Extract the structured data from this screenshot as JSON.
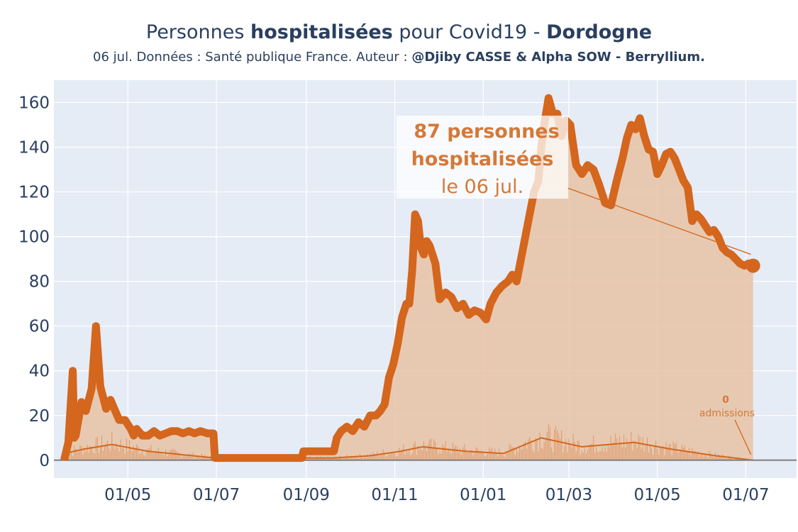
{
  "header": {
    "title_pre": "Personnes ",
    "title_bold1": "hospitalisées",
    "title_mid": " pour Covid19 - ",
    "title_bold2": "Dordogne",
    "subtitle_pre": "06 jul. Données : Santé publique France. Auteur : ",
    "subtitle_bold": "@Djiby CASSE & Alpha SOW - Berryllium."
  },
  "annotation": {
    "line1": "87 personnes",
    "line2": "hospitalisées",
    "line3": "le 06 jul."
  },
  "admissions_annotation": {
    "value": "0",
    "label": "admissions"
  },
  "colors": {
    "line": "#d4661d",
    "fill": "#e8c3a4",
    "plot_bg": "#e5ecf6",
    "grid": "#ffffff",
    "text": "#2a3f5f",
    "annotation": "#d4793a"
  },
  "chart_data": {
    "type": "area",
    "title": "Personnes hospitalisées pour Covid19 - Dordogne",
    "xlabel": "",
    "ylabel": "",
    "ylim": [
      -8,
      170
    ],
    "xlim": [
      "2020-03-11",
      "2021-08-05"
    ],
    "x_tick_labels": [
      "01/05",
      "01/07",
      "01/09",
      "01/11",
      "01/01",
      "01/03",
      "01/05",
      "01/07"
    ],
    "x_tick_dates": [
      "2020-05-01",
      "2020-07-01",
      "2020-09-01",
      "2020-11-01",
      "2021-01-01",
      "2021-03-01",
      "2021-05-01",
      "2021-07-01"
    ],
    "y_ticks": [
      0,
      20,
      40,
      60,
      80,
      100,
      120,
      140,
      160
    ],
    "series": [
      {
        "x": [
          "2020-03-18",
          "2020-03-21",
          "2020-03-24",
          "2020-03-25",
          "2020-03-26",
          "2020-03-30",
          "2020-04-02",
          "2020-04-06",
          "2020-04-09",
          "2020-04-12",
          "2020-04-14",
          "2020-04-16",
          "2020-04-17",
          "2020-04-19",
          "2020-04-21",
          "2020-04-25",
          "2020-04-29",
          "2020-05-03",
          "2020-05-05",
          "2020-05-07",
          "2020-05-11",
          "2020-05-15",
          "2020-05-19",
          "2020-05-23",
          "2020-05-27",
          "2020-05-31",
          "2020-06-04",
          "2020-06-08",
          "2020-06-12",
          "2020-06-16",
          "2020-06-20",
          "2020-06-25",
          "2020-06-29",
          "2020-06-30",
          "2020-07-05",
          "2020-07-20",
          "2020-08-10",
          "2020-08-25",
          "2020-08-29",
          "2020-08-30",
          "2020-09-05",
          "2020-09-15",
          "2020-09-20",
          "2020-09-22",
          "2020-09-25",
          "2020-09-29",
          "2020-10-03",
          "2020-10-07",
          "2020-10-11",
          "2020-10-15",
          "2020-10-19",
          "2020-10-22",
          "2020-10-25",
          "2020-10-28",
          "2020-10-31",
          "2020-11-03",
          "2020-11-06",
          "2020-11-09",
          "2020-11-11",
          "2020-11-13",
          "2020-11-15",
          "2020-11-17",
          "2020-11-19",
          "2020-11-21",
          "2020-11-23",
          "2020-11-25",
          "2020-11-29",
          "2020-12-02",
          "2020-12-06",
          "2020-12-10",
          "2020-12-14",
          "2020-12-18",
          "2020-12-22",
          "2020-12-26",
          "2020-12-30",
          "2021-01-03",
          "2021-01-06",
          "2021-01-10",
          "2021-01-14",
          "2021-01-18",
          "2021-01-21",
          "2021-01-24",
          "2021-01-27",
          "2021-01-30",
          "2021-02-02",
          "2021-02-05",
          "2021-02-08",
          "2021-02-10",
          "2021-02-12",
          "2021-02-15",
          "2021-02-18",
          "2021-02-21",
          "2021-02-24",
          "2021-02-27",
          "2021-03-02",
          "2021-03-06",
          "2021-03-10",
          "2021-03-14",
          "2021-03-18",
          "2021-03-22",
          "2021-03-26",
          "2021-03-30",
          "2021-04-03",
          "2021-04-07",
          "2021-04-10",
          "2021-04-13",
          "2021-04-16",
          "2021-04-19",
          "2021-04-22",
          "2021-04-25",
          "2021-04-28",
          "2021-05-01",
          "2021-05-04",
          "2021-05-07",
          "2021-05-10",
          "2021-05-13",
          "2021-05-16",
          "2021-05-19",
          "2021-05-22",
          "2021-05-25",
          "2021-05-28",
          "2021-05-31",
          "2021-06-03",
          "2021-06-06",
          "2021-06-09",
          "2021-06-12",
          "2021-06-15",
          "2021-06-18",
          "2021-06-21",
          "2021-06-24",
          "2021-06-27",
          "2021-06-30",
          "2021-07-03",
          "2021-07-06"
        ],
        "values": [
          0,
          8,
          40,
          10,
          11,
          26,
          22,
          32,
          60,
          33,
          28,
          23,
          24,
          27,
          24,
          18,
          18,
          14,
          11,
          14,
          11,
          11,
          13,
          11,
          12,
          13,
          13,
          12,
          13,
          12,
          13,
          12,
          12,
          1,
          1,
          1,
          1,
          1,
          1,
          4,
          4,
          4,
          4,
          10,
          13,
          15,
          13,
          17,
          15,
          20,
          20,
          22,
          25,
          37,
          43,
          52,
          64,
          70,
          70,
          85,
          110,
          107,
          95,
          92,
          98,
          96,
          88,
          72,
          75,
          73,
          68,
          70,
          65,
          67,
          66,
          63,
          70,
          75,
          78,
          80,
          83,
          80,
          90,
          100,
          110,
          120,
          125,
          140,
          150,
          162,
          155,
          155,
          145,
          152,
          150,
          132,
          128,
          132,
          130,
          123,
          115,
          114,
          125,
          135,
          144,
          150,
          148,
          153,
          145,
          139,
          138,
          128,
          132,
          137,
          138,
          135,
          130,
          125,
          122,
          107,
          110,
          108,
          105,
          102,
          103,
          100,
          95,
          93,
          92,
          90,
          88,
          87,
          88,
          87
        ],
        "fill": "tozeroy"
      },
      {
        "x": [
          "2020-03-18",
          "2020-04-01",
          "2020-04-20",
          "2020-05-15",
          "2020-06-30",
          "2020-09-20",
          "2020-10-15",
          "2020-11-05",
          "2020-11-20",
          "2020-12-20",
          "2021-01-15",
          "2021-02-10",
          "2021-03-10",
          "2021-04-15",
          "2021-05-10",
          "2021-06-10",
          "2021-07-06"
        ],
        "values": [
          3,
          5,
          7,
          4,
          1,
          1,
          2,
          4,
          6,
          4,
          3,
          10,
          6,
          8,
          5,
          2,
          0
        ]
      }
    ]
  }
}
